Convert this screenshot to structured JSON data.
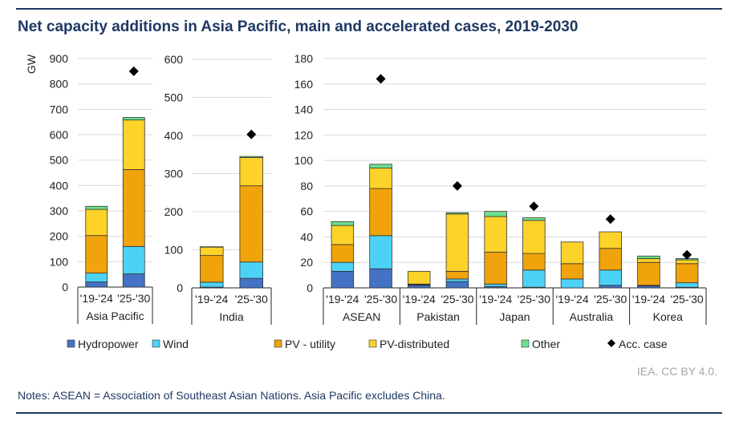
{
  "title": "Net capacity additions in Asia Pacific, main and accelerated cases, 2019-2030",
  "credit": "IEA. CC BY 4.0.",
  "notes": "Notes: ASEAN = Association of Southeast Asian Nations. Asia Pacific excludes China.",
  "chart_data": {
    "type": "bar",
    "stacked": true,
    "ylabel": "GW",
    "grid": true,
    "legend_placement": "bottom",
    "series_names": [
      "Hydropower",
      "Wind",
      "PV - utility",
      "PV-distributed",
      "Other"
    ],
    "marker_name": "Acc. case",
    "colors": {
      "Hydropower": "#4472C4",
      "Wind": "#4DD2F7",
      "PV - utility": "#F0A30A",
      "PV-distributed": "#FDD329",
      "Other": "#6EE08E",
      "Acc. case": "#000000"
    },
    "panels": [
      {
        "ylim": [
          0,
          900
        ],
        "yticks": [
          0,
          100,
          200,
          300,
          400,
          500,
          600,
          700,
          800,
          900
        ],
        "groups": [
          {
            "name": "Asia Pacific",
            "bars": [
              {
                "period": "'19-'24",
                "values": [
                  20,
                  35,
                  148,
                  103,
                  12
                ],
                "acc_case": null
              },
              {
                "period": "'25-'30",
                "values": [
                  52,
                  108,
                  303,
                  195,
                  10
                ],
                "acc_case": 850
              }
            ]
          }
        ]
      },
      {
        "ylim": [
          0,
          600
        ],
        "yticks": [
          0,
          100,
          200,
          300,
          400,
          500,
          600
        ],
        "groups": [
          {
            "name": "India",
            "bars": [
              {
                "period": "'19-'24",
                "values": [
                  2,
                  13,
                  70,
                  22,
                  1
                ],
                "acc_case": null
              },
              {
                "period": "'25-'30",
                "values": [
                  25,
                  43,
                  200,
                  74,
                  3
                ],
                "acc_case": 403
              }
            ]
          }
        ]
      },
      {
        "ylim": [
          0,
          180
        ],
        "yticks": [
          0,
          20,
          40,
          60,
          80,
          100,
          120,
          140,
          160,
          180
        ],
        "groups": [
          {
            "name": "ASEAN",
            "bars": [
              {
                "period": "'19-'24",
                "values": [
                  13,
                  7,
                  14,
                  15,
                  3
                ],
                "acc_case": null
              },
              {
                "period": "'25-'30",
                "values": [
                  15,
                  26,
                  37,
                  16,
                  3
                ],
                "acc_case": 164
              }
            ]
          },
          {
            "name": "Pakistan",
            "bars": [
              {
                "period": "'19-'24",
                "values": [
                  2,
                  0.5,
                  0.5,
                  10,
                  0
                ],
                "acc_case": null
              },
              {
                "period": "'25-'30",
                "values": [
                  5,
                  2,
                  6,
                  45,
                  1
                ],
                "acc_case": 80
              }
            ]
          },
          {
            "name": "Japan",
            "bars": [
              {
                "period": "'19-'24",
                "values": [
                  1,
                  2,
                  25,
                  28,
                  4
                ],
                "acc_case": null
              },
              {
                "period": "'25-'30",
                "values": [
                  0.5,
                  13.5,
                  13,
                  26,
                  2
                ],
                "acc_case": 64
              }
            ]
          },
          {
            "name": "Australia",
            "bars": [
              {
                "period": "'19-'24",
                "values": [
                  0,
                  7,
                  12,
                  17,
                  0
                ],
                "acc_case": null
              },
              {
                "period": "'25-'30",
                "values": [
                  2,
                  12,
                  17,
                  13,
                  0
                ],
                "acc_case": 54
              }
            ]
          },
          {
            "name": "Korea",
            "bars": [
              {
                "period": "'19-'24",
                "values": [
                  1.5,
                  0.5,
                  18,
                  3,
                  2
                ],
                "acc_case": null
              },
              {
                "period": "'25-'30",
                "values": [
                  0.5,
                  3.5,
                  15,
                  3,
                  1
                ],
                "acc_case": 26
              }
            ]
          }
        ]
      }
    ]
  }
}
